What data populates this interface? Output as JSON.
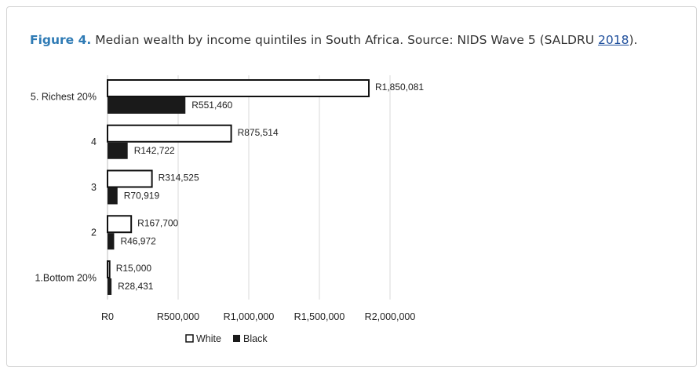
{
  "caption": {
    "label": "Figure 4.",
    "text_before": " Median wealth by income quintiles in South Africa. Source: NIDS Wave 5 (SALDRU ",
    "ref": "2018",
    "text_after": ")."
  },
  "colors": {
    "caption_label": "#2f7bb5",
    "white_bar": "#ffffff",
    "black_bar": "#1a1a1a",
    "gridline": "#d9d9d9"
  },
  "chart_data": {
    "type": "bar",
    "orientation": "horizontal",
    "categories": [
      "5. Richest 20%",
      "4",
      "3",
      "2",
      "1.Bottom 20%"
    ],
    "series": [
      {
        "name": "White",
        "values": [
          1850081,
          875514,
          314525,
          167700,
          15000
        ],
        "labels": [
          "R1,850,081",
          "R875,514",
          "R314,525",
          "R167,700",
          "R15,000"
        ]
      },
      {
        "name": "Black",
        "values": [
          551460,
          142722,
          70919,
          46972,
          28431
        ],
        "labels": [
          "R551,460",
          "R142,722",
          "R70,919",
          "R46,972",
          "R28,431"
        ]
      }
    ],
    "xlim": [
      0,
      2000000
    ],
    "x_ticks": [
      0,
      500000,
      1000000,
      1500000,
      2000000
    ],
    "x_tick_labels": [
      "R0",
      "R500,000",
      "R1,000,000",
      "R1,500,000",
      "R2,000,000"
    ],
    "grid": true,
    "legend_position": "bottom"
  }
}
